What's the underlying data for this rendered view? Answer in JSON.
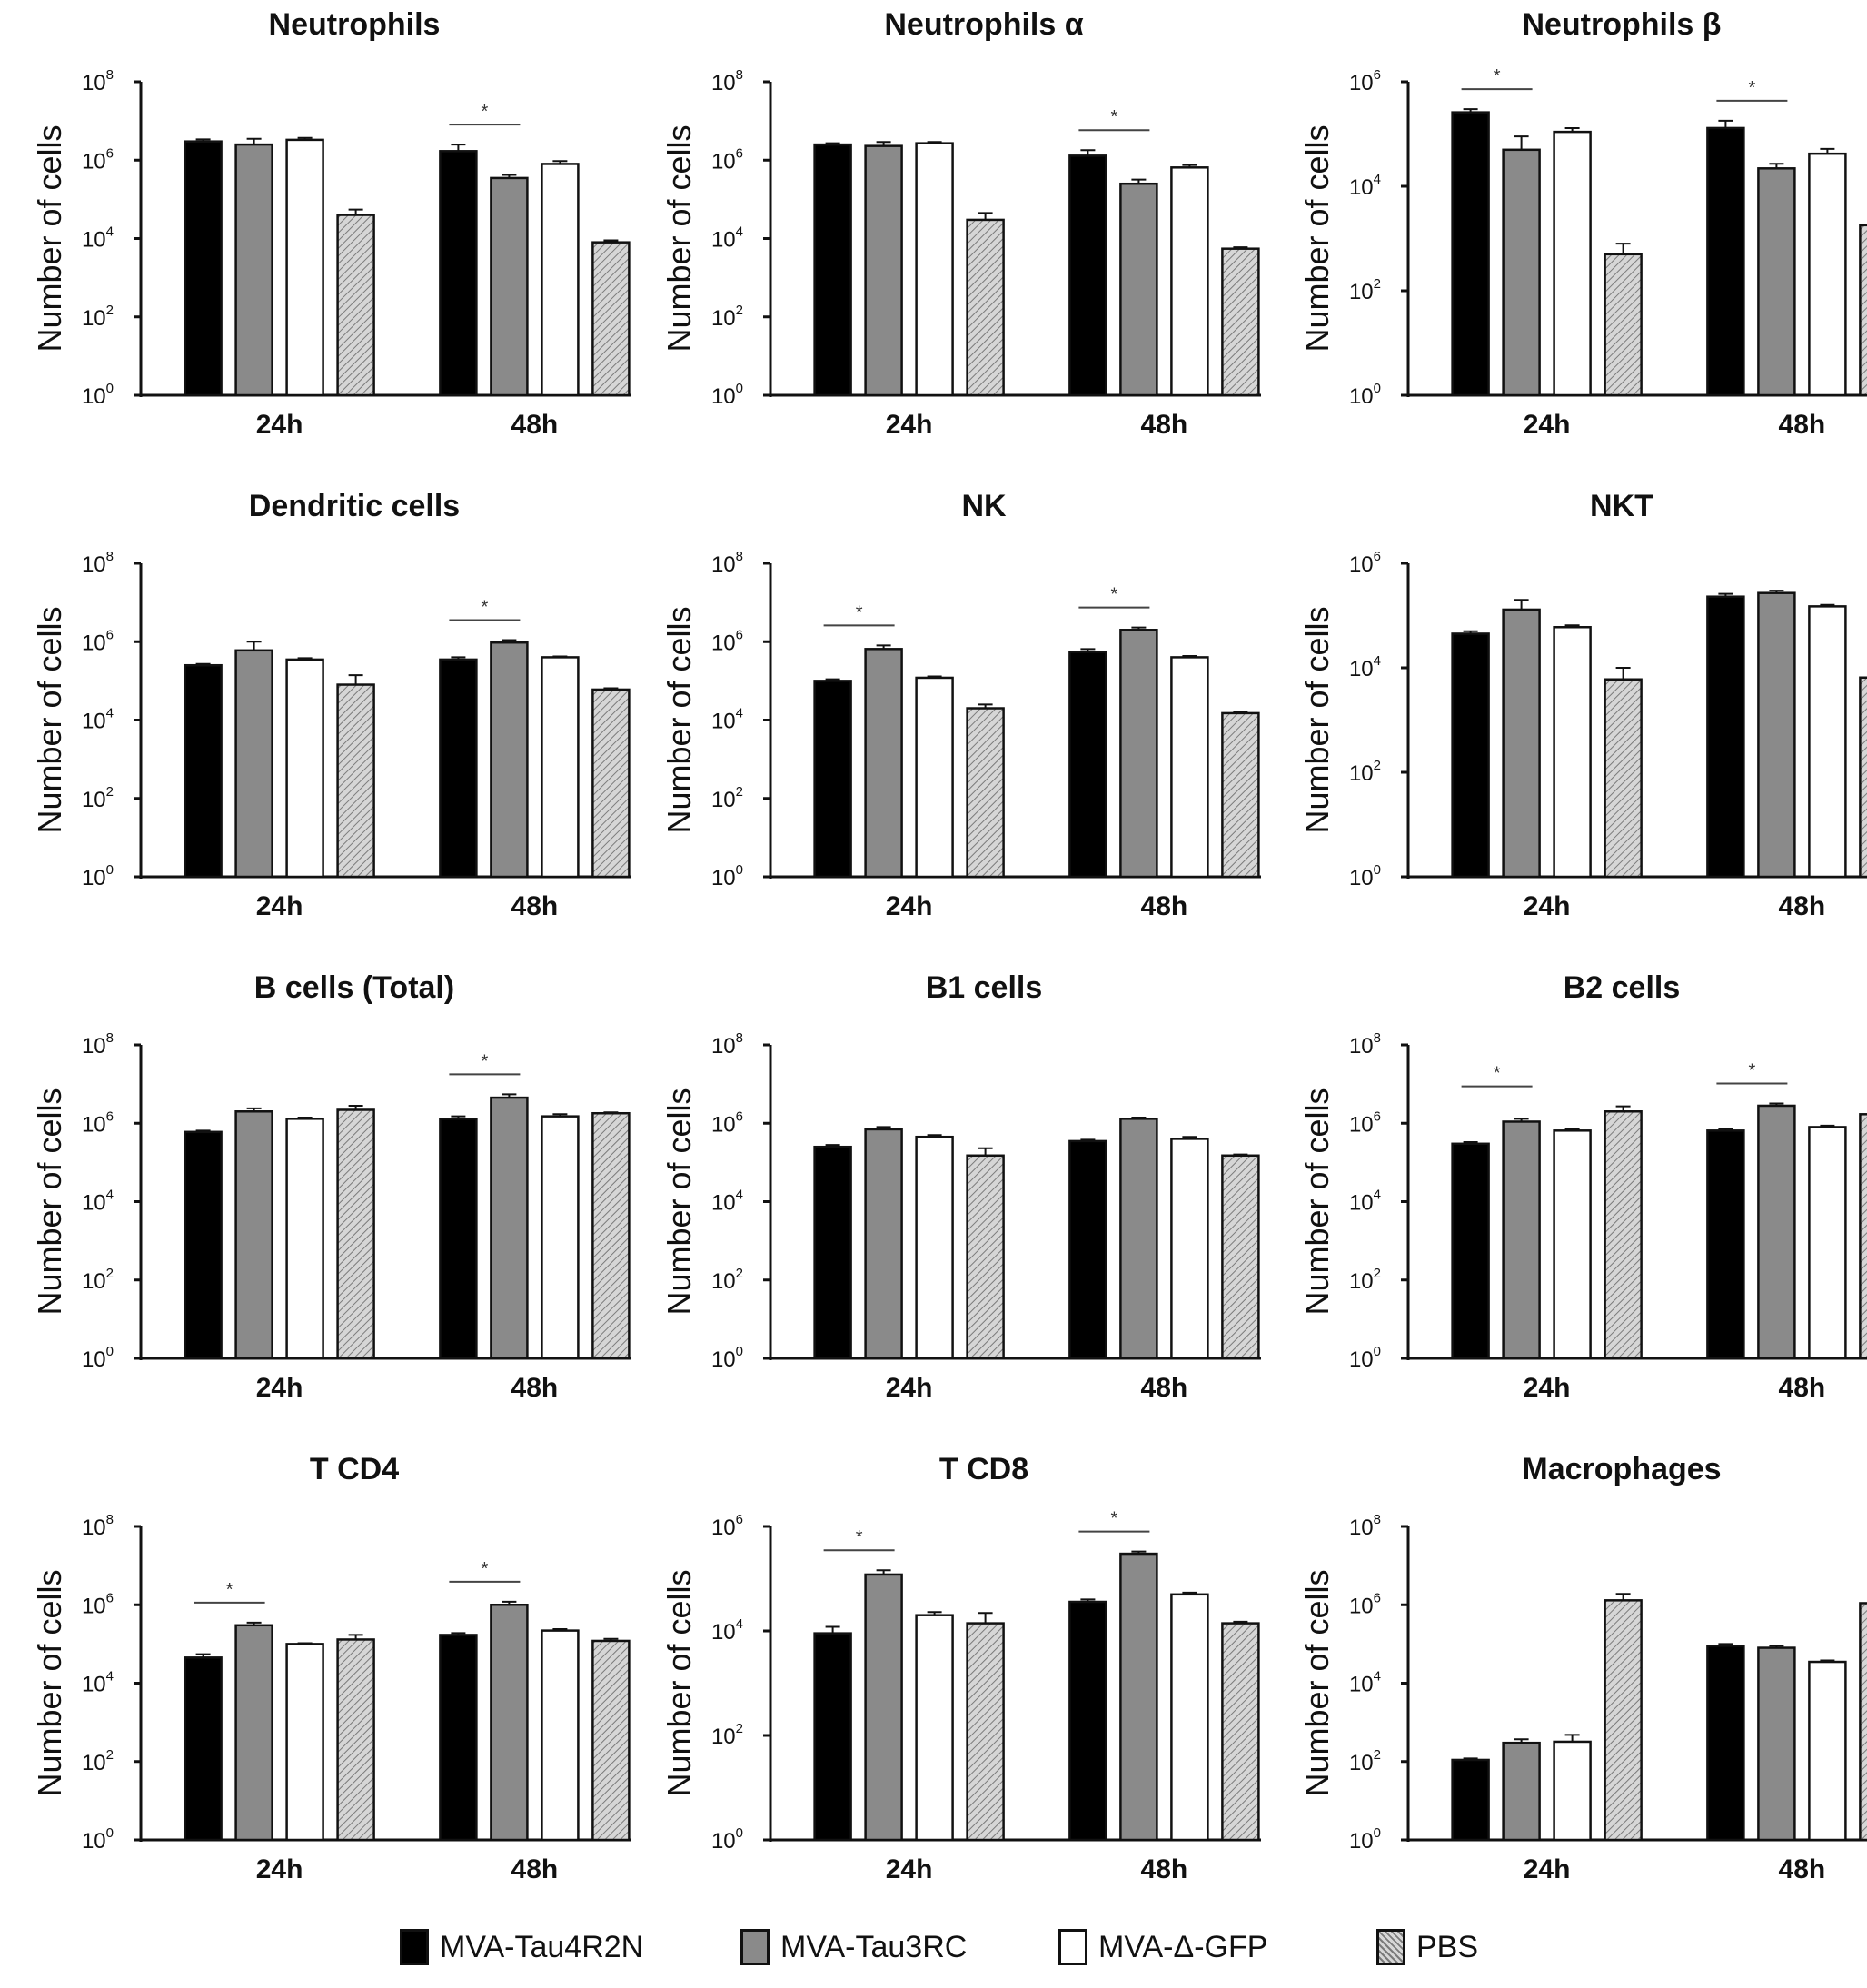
{
  "legend": {
    "items": [
      {
        "label": "MVA-Tau4R2N",
        "color": "#000000",
        "pattern": "solid"
      },
      {
        "label": "MVA-Tau3RC",
        "color": "#8a8a8a",
        "pattern": "solid"
      },
      {
        "label": "MVA-Δ-GFP",
        "color": "#ffffff",
        "pattern": "solid"
      },
      {
        "label": "PBS",
        "color": "#bdbdbd",
        "pattern": "hatched"
      }
    ]
  },
  "chart_data": [
    {
      "type": "bar",
      "title": "Neutrophils",
      "ylabel": "Number of cells",
      "yscale": "log",
      "ylim": [
        1,
        100000000
      ],
      "yticks": [
        {
          "base": "10",
          "exp": "0"
        },
        {
          "base": "10",
          "exp": "2"
        },
        {
          "base": "10",
          "exp": "4"
        },
        {
          "base": "10",
          "exp": "6"
        },
        {
          "base": "10",
          "exp": "8"
        }
      ],
      "categories": [
        "24h",
        "48h"
      ],
      "series": [
        {
          "name": "MVA-Tau4R2N",
          "values": [
            3000000,
            1700000
          ],
          "errors": [
            3400000,
            2500000
          ]
        },
        {
          "name": "MVA-Tau3RC",
          "values": [
            2500000,
            350000
          ],
          "errors": [
            3500000,
            420000
          ]
        },
        {
          "name": "MVA-Δ-GFP",
          "values": [
            3300000,
            800000
          ],
          "errors": [
            3700000,
            950000
          ]
        },
        {
          "name": "PBS",
          "values": [
            40000,
            8000
          ],
          "errors": [
            55000,
            9000
          ]
        }
      ],
      "significance": [
        {
          "category": "48h",
          "label": "*"
        }
      ]
    },
    {
      "type": "bar",
      "title": "Neutrophils α",
      "ylabel": "Number of cells",
      "yscale": "log",
      "ylim": [
        1,
        100000000
      ],
      "yticks": [
        {
          "base": "10",
          "exp": "0"
        },
        {
          "base": "10",
          "exp": "2"
        },
        {
          "base": "10",
          "exp": "4"
        },
        {
          "base": "10",
          "exp": "6"
        },
        {
          "base": "10",
          "exp": "8"
        }
      ],
      "categories": [
        "24h",
        "48h"
      ],
      "series": [
        {
          "name": "MVA-Tau4R2N",
          "values": [
            2500000,
            1300000
          ],
          "errors": [
            2700000,
            1800000
          ]
        },
        {
          "name": "MVA-Tau3RC",
          "values": [
            2300000,
            250000
          ],
          "errors": [
            2900000,
            320000
          ]
        },
        {
          "name": "MVA-Δ-GFP",
          "values": [
            2700000,
            650000
          ],
          "errors": [
            2900000,
            750000
          ]
        },
        {
          "name": "PBS",
          "values": [
            30000,
            5500
          ],
          "errors": [
            45000,
            6000
          ]
        }
      ],
      "significance": [
        {
          "category": "48h",
          "label": "*"
        }
      ]
    },
    {
      "type": "bar",
      "title": "Neutrophils β",
      "ylabel": "Number of cells",
      "yscale": "log",
      "ylim": [
        1,
        1000000
      ],
      "yticks": [
        {
          "base": "10",
          "exp": "0"
        },
        {
          "base": "10",
          "exp": "2"
        },
        {
          "base": "10",
          "exp": "4"
        },
        {
          "base": "10",
          "exp": "6"
        }
      ],
      "categories": [
        "24h",
        "48h"
      ],
      "series": [
        {
          "name": "MVA-Tau4R2N",
          "values": [
            260000,
            130000
          ],
          "errors": [
            300000,
            180000
          ]
        },
        {
          "name": "MVA-Tau3RC",
          "values": [
            50000,
            22000
          ],
          "errors": [
            90000,
            27000
          ]
        },
        {
          "name": "MVA-Δ-GFP",
          "values": [
            110000,
            42000
          ],
          "errors": [
            130000,
            52000
          ]
        },
        {
          "name": "PBS",
          "values": [
            500,
            1800
          ],
          "errors": [
            800,
            2000
          ]
        }
      ],
      "significance": [
        {
          "category": "24h",
          "label": "*"
        },
        {
          "category": "48h",
          "label": "*"
        }
      ]
    },
    {
      "type": "bar",
      "title": "Dendritic cells",
      "ylabel": "Number of cells",
      "yscale": "log",
      "ylim": [
        1,
        100000000
      ],
      "yticks": [
        {
          "base": "10",
          "exp": "0"
        },
        {
          "base": "10",
          "exp": "2"
        },
        {
          "base": "10",
          "exp": "4"
        },
        {
          "base": "10",
          "exp": "6"
        },
        {
          "base": "10",
          "exp": "8"
        }
      ],
      "categories": [
        "24h",
        "48h"
      ],
      "series": [
        {
          "name": "MVA-Tau4R2N",
          "values": [
            250000,
            350000
          ],
          "errors": [
            270000,
            400000
          ]
        },
        {
          "name": "MVA-Tau3RC",
          "values": [
            600000,
            950000
          ],
          "errors": [
            1000000,
            1100000
          ]
        },
        {
          "name": "MVA-Δ-GFP",
          "values": [
            350000,
            400000
          ],
          "errors": [
            380000,
            420000
          ]
        },
        {
          "name": "PBS",
          "values": [
            80000,
            60000
          ],
          "errors": [
            140000,
            65000
          ]
        }
      ],
      "significance": [
        {
          "category": "48h",
          "label": "*"
        }
      ]
    },
    {
      "type": "bar",
      "title": "NK",
      "ylabel": "Number of cells",
      "yscale": "log",
      "ylim": [
        1,
        100000000
      ],
      "yticks": [
        {
          "base": "10",
          "exp": "0"
        },
        {
          "base": "10",
          "exp": "2"
        },
        {
          "base": "10",
          "exp": "4"
        },
        {
          "base": "10",
          "exp": "6"
        },
        {
          "base": "10",
          "exp": "8"
        }
      ],
      "categories": [
        "24h",
        "48h"
      ],
      "series": [
        {
          "name": "MVA-Tau4R2N",
          "values": [
            100000,
            550000
          ],
          "errors": [
            110000,
            650000
          ]
        },
        {
          "name": "MVA-Tau3RC",
          "values": [
            650000,
            2000000
          ],
          "errors": [
            800000,
            2300000
          ]
        },
        {
          "name": "MVA-Δ-GFP",
          "values": [
            120000,
            400000
          ],
          "errors": [
            130000,
            430000
          ]
        },
        {
          "name": "PBS",
          "values": [
            20000,
            15000
          ],
          "errors": [
            25000,
            16000
          ]
        }
      ],
      "significance": [
        {
          "category": "24h",
          "label": "*"
        },
        {
          "category": "48h",
          "label": "*"
        }
      ]
    },
    {
      "type": "bar",
      "title": "NKT",
      "ylabel": "Number of cells",
      "yscale": "log",
      "ylim": [
        1,
        1000000
      ],
      "yticks": [
        {
          "base": "10",
          "exp": "0"
        },
        {
          "base": "10",
          "exp": "2"
        },
        {
          "base": "10",
          "exp": "4"
        },
        {
          "base": "10",
          "exp": "6"
        }
      ],
      "categories": [
        "24h",
        "48h"
      ],
      "series": [
        {
          "name": "MVA-Tau4R2N",
          "values": [
            45000,
            230000
          ],
          "errors": [
            50000,
            260000
          ]
        },
        {
          "name": "MVA-Tau3RC",
          "values": [
            130000,
            270000
          ],
          "errors": [
            200000,
            300000
          ]
        },
        {
          "name": "MVA-Δ-GFP",
          "values": [
            60000,
            150000
          ],
          "errors": [
            65000,
            160000
          ]
        },
        {
          "name": "PBS",
          "values": [
            6000,
            6500
          ],
          "errors": [
            10000,
            7000
          ]
        }
      ],
      "significance": []
    },
    {
      "type": "bar",
      "title": "B cells (Total)",
      "ylabel": "Number of cells",
      "yscale": "log",
      "ylim": [
        1,
        100000000
      ],
      "yticks": [
        {
          "base": "10",
          "exp": "0"
        },
        {
          "base": "10",
          "exp": "2"
        },
        {
          "base": "10",
          "exp": "4"
        },
        {
          "base": "10",
          "exp": "6"
        },
        {
          "base": "10",
          "exp": "8"
        }
      ],
      "categories": [
        "24h",
        "48h"
      ],
      "series": [
        {
          "name": "MVA-Tau4R2N",
          "values": [
            600000,
            1300000
          ],
          "errors": [
            650000,
            1500000
          ]
        },
        {
          "name": "MVA-Tau3RC",
          "values": [
            2000000,
            4500000
          ],
          "errors": [
            2400000,
            5500000
          ]
        },
        {
          "name": "MVA-Δ-GFP",
          "values": [
            1300000,
            1500000
          ],
          "errors": [
            1400000,
            1700000
          ]
        },
        {
          "name": "PBS",
          "values": [
            2200000,
            1800000
          ],
          "errors": [
            2800000,
            1900000
          ]
        }
      ],
      "significance": [
        {
          "category": "48h",
          "label": "*"
        }
      ]
    },
    {
      "type": "bar",
      "title": "B1 cells",
      "ylabel": "Number of cells",
      "yscale": "log",
      "ylim": [
        1,
        100000000
      ],
      "yticks": [
        {
          "base": "10",
          "exp": "0"
        },
        {
          "base": "10",
          "exp": "2"
        },
        {
          "base": "10",
          "exp": "4"
        },
        {
          "base": "10",
          "exp": "6"
        },
        {
          "base": "10",
          "exp": "8"
        }
      ],
      "categories": [
        "24h",
        "48h"
      ],
      "series": [
        {
          "name": "MVA-Tau4R2N",
          "values": [
            250000,
            350000
          ],
          "errors": [
            280000,
            380000
          ]
        },
        {
          "name": "MVA-Tau3RC",
          "values": [
            700000,
            1300000
          ],
          "errors": [
            800000,
            1400000
          ]
        },
        {
          "name": "MVA-Δ-GFP",
          "values": [
            450000,
            400000
          ],
          "errors": [
            500000,
            450000
          ]
        },
        {
          "name": "PBS",
          "values": [
            150000,
            150000
          ],
          "errors": [
            230000,
            160000
          ]
        }
      ],
      "significance": []
    },
    {
      "type": "bar",
      "title": "B2 cells",
      "ylabel": "Number of cells",
      "yscale": "log",
      "ylim": [
        1,
        100000000
      ],
      "yticks": [
        {
          "base": "10",
          "exp": "0"
        },
        {
          "base": "10",
          "exp": "2"
        },
        {
          "base": "10",
          "exp": "4"
        },
        {
          "base": "10",
          "exp": "6"
        },
        {
          "base": "10",
          "exp": "8"
        }
      ],
      "categories": [
        "24h",
        "48h"
      ],
      "series": [
        {
          "name": "MVA-Tau4R2N",
          "values": [
            300000,
            650000
          ],
          "errors": [
            330000,
            720000
          ]
        },
        {
          "name": "MVA-Tau3RC",
          "values": [
            1100000,
            2800000
          ],
          "errors": [
            1300000,
            3200000
          ]
        },
        {
          "name": "MVA-Δ-GFP",
          "values": [
            650000,
            800000
          ],
          "errors": [
            700000,
            870000
          ]
        },
        {
          "name": "PBS",
          "values": [
            2000000,
            1700000
          ],
          "errors": [
            2700000,
            1800000
          ]
        }
      ],
      "significance": [
        {
          "category": "24h",
          "label": "*"
        },
        {
          "category": "48h",
          "label": "*"
        }
      ]
    },
    {
      "type": "bar",
      "title": "T CD4",
      "ylabel": "Number of cells",
      "yscale": "log",
      "ylim": [
        1,
        100000000
      ],
      "yticks": [
        {
          "base": "10",
          "exp": "0"
        },
        {
          "base": "10",
          "exp": "2"
        },
        {
          "base": "10",
          "exp": "4"
        },
        {
          "base": "10",
          "exp": "6"
        },
        {
          "base": "10",
          "exp": "8"
        }
      ],
      "categories": [
        "24h",
        "48h"
      ],
      "series": [
        {
          "name": "MVA-Tau4R2N",
          "values": [
            45000,
            170000
          ],
          "errors": [
            55000,
            190000
          ]
        },
        {
          "name": "MVA-Tau3RC",
          "values": [
            300000,
            1000000
          ],
          "errors": [
            350000,
            1200000
          ]
        },
        {
          "name": "MVA-Δ-GFP",
          "values": [
            100000,
            220000
          ],
          "errors": [
            105000,
            240000
          ]
        },
        {
          "name": "PBS",
          "values": [
            130000,
            120000
          ],
          "errors": [
            170000,
            135000
          ]
        }
      ],
      "significance": [
        {
          "category": "24h",
          "label": "*"
        },
        {
          "category": "48h",
          "label": "*"
        }
      ]
    },
    {
      "type": "bar",
      "title": "T CD8",
      "ylabel": "Number of cells",
      "yscale": "log",
      "ylim": [
        1,
        1000000
      ],
      "yticks": [
        {
          "base": "10",
          "exp": "0"
        },
        {
          "base": "10",
          "exp": "2"
        },
        {
          "base": "10",
          "exp": "4"
        },
        {
          "base": "10",
          "exp": "6"
        }
      ],
      "categories": [
        "24h",
        "48h"
      ],
      "series": [
        {
          "name": "MVA-Tau4R2N",
          "values": [
            9000,
            36000
          ],
          "errors": [
            12000,
            40000
          ]
        },
        {
          "name": "MVA-Tau3RC",
          "values": [
            120000,
            300000
          ],
          "errors": [
            145000,
            330000
          ]
        },
        {
          "name": "MVA-Δ-GFP",
          "values": [
            20000,
            50000
          ],
          "errors": [
            23000,
            54000
          ]
        },
        {
          "name": "PBS",
          "values": [
            14000,
            14000
          ],
          "errors": [
            22000,
            15000
          ]
        }
      ],
      "significance": [
        {
          "category": "24h",
          "label": "*"
        },
        {
          "category": "48h",
          "label": "*"
        }
      ]
    },
    {
      "type": "bar",
      "title": "Macrophages",
      "ylabel": "Number of cells",
      "yscale": "log",
      "ylim": [
        1,
        100000000
      ],
      "yticks": [
        {
          "base": "10",
          "exp": "0"
        },
        {
          "base": "10",
          "exp": "2"
        },
        {
          "base": "10",
          "exp": "4"
        },
        {
          "base": "10",
          "exp": "6"
        },
        {
          "base": "10",
          "exp": "8"
        }
      ],
      "categories": [
        "24h",
        "48h"
      ],
      "series": [
        {
          "name": "MVA-Tau4R2N",
          "values": [
            110,
            90000
          ],
          "errors": [
            120,
            100000
          ]
        },
        {
          "name": "MVA-Tau3RC",
          "values": [
            300,
            80000
          ],
          "errors": [
            370,
            90000
          ]
        },
        {
          "name": "MVA-Δ-GFP",
          "values": [
            320,
            35000
          ],
          "errors": [
            480,
            38000
          ]
        },
        {
          "name": "PBS",
          "values": [
            1300000,
            1100000
          ],
          "errors": [
            1900000,
            1200000
          ]
        }
      ],
      "significance": []
    }
  ]
}
